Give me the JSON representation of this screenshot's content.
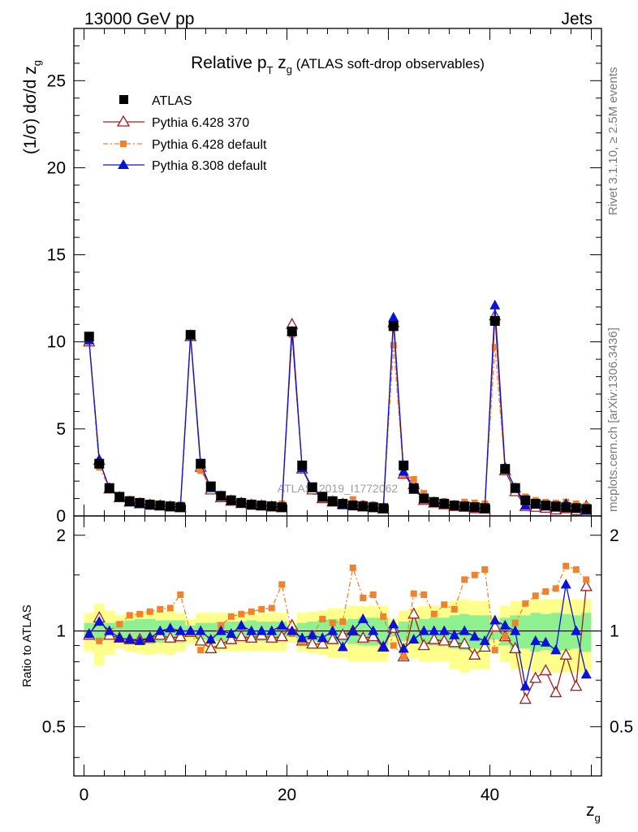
{
  "header": {
    "energy_label": "13000 GeV pp",
    "process_label": "Jets"
  },
  "side_labels": {
    "rivet": "Rivet 3.1.10, ≥ 2.5M events",
    "mcplots": "mcplots.cern.ch [arXiv:1306.3436]"
  },
  "watermark": "ATLAS_2019_I1772062",
  "chart_data": [
    {
      "type": "line",
      "title_main": "Relative p",
      "title_sub": "T",
      "title_var": " z",
      "title_var_sub": "g",
      "title_note": " (ATLAS soft-drop observables)",
      "ylabel": "(1/σ) dσ/d z",
      "ylabel_sub": "g",
      "xlabel": "z",
      "xlabel_sub": "g",
      "xlim": [
        -1,
        51
      ],
      "ylim": [
        0,
        28
      ],
      "yticks": [
        0,
        5,
        10,
        15,
        20,
        25
      ],
      "xticks": [
        0,
        20,
        40
      ],
      "x": [
        0.5,
        1.5,
        2.5,
        3.5,
        4.5,
        5.5,
        6.5,
        7.5,
        8.5,
        9.5,
        10.5,
        11.5,
        12.5,
        13.5,
        14.5,
        15.5,
        16.5,
        17.5,
        18.5,
        19.5,
        20.5,
        21.5,
        22.5,
        23.5,
        24.5,
        25.5,
        26.5,
        27.5,
        28.5,
        29.5,
        30.5,
        31.5,
        32.5,
        33.5,
        34.5,
        35.5,
        36.5,
        37.5,
        38.5,
        39.5,
        40.5,
        41.5,
        42.5,
        43.5,
        44.5,
        45.5,
        46.5,
        47.5,
        48.5,
        49.5
      ],
      "series": [
        {
          "name": "ATLAS",
          "color": "#000000",
          "marker": "square",
          "values": [
            10.3,
            3.0,
            1.6,
            1.1,
            0.85,
            0.75,
            0.65,
            0.6,
            0.55,
            0.5,
            10.4,
            3.0,
            1.7,
            1.15,
            0.9,
            0.75,
            0.65,
            0.6,
            0.55,
            0.5,
            10.6,
            2.9,
            1.65,
            1.1,
            0.85,
            0.7,
            0.6,
            0.55,
            0.5,
            0.45,
            10.9,
            2.9,
            1.6,
            1.0,
            0.8,
            0.7,
            0.6,
            0.55,
            0.5,
            0.45,
            11.2,
            2.7,
            1.6,
            0.9,
            0.7,
            0.6,
            0.55,
            0.5,
            0.45,
            0.4
          ]
        },
        {
          "name": "Pythia 6.428 370",
          "color": "#a01e1e",
          "marker": "triangle-open",
          "values": [
            10.0,
            3.2,
            1.55,
            1.05,
            0.8,
            0.7,
            0.62,
            0.58,
            0.52,
            0.48,
            10.3,
            2.8,
            1.5,
            1.05,
            0.85,
            0.72,
            0.62,
            0.58,
            0.52,
            0.48,
            11.0,
            2.7,
            1.5,
            1.0,
            0.8,
            0.68,
            0.6,
            0.52,
            0.48,
            0.4,
            11.1,
            2.4,
            1.8,
            0.9,
            0.75,
            0.65,
            0.55,
            0.5,
            0.42,
            0.4,
            11.5,
            2.6,
            1.4,
            0.55,
            0.5,
            0.45,
            0.35,
            0.42,
            0.3,
            0.55
          ]
        },
        {
          "name": "Pythia 6.428 default",
          "color": "#f0822d",
          "marker": "square-small",
          "dashed": true,
          "values": [
            10.0,
            2.8,
            1.6,
            1.15,
            0.95,
            0.85,
            0.75,
            0.7,
            0.65,
            0.65,
            10.3,
            2.6,
            1.6,
            1.2,
            1.0,
            0.85,
            0.75,
            0.7,
            0.65,
            0.7,
            10.4,
            2.7,
            1.6,
            1.2,
            0.9,
            0.75,
            0.95,
            0.7,
            0.65,
            0.5,
            9.8,
            2.4,
            2.1,
            1.3,
            0.9,
            0.85,
            0.7,
            0.8,
            0.75,
            0.7,
            9.7,
            2.6,
            1.7,
            1.1,
            0.9,
            0.8,
            0.75,
            0.8,
            0.7,
            0.58
          ]
        },
        {
          "name": "Pythia 8.308 default",
          "color": "#0a12d8",
          "marker": "triangle",
          "values": [
            10.1,
            3.2,
            1.6,
            1.05,
            0.8,
            0.7,
            0.62,
            0.6,
            0.56,
            0.5,
            10.4,
            3.0,
            1.6,
            1.15,
            0.88,
            0.78,
            0.65,
            0.6,
            0.55,
            0.52,
            10.6,
            2.75,
            1.6,
            1.05,
            0.85,
            0.62,
            0.6,
            0.6,
            0.5,
            0.4,
            11.4,
            2.55,
            1.5,
            1.0,
            0.8,
            0.7,
            0.58,
            0.55,
            0.48,
            0.42,
            12.1,
            2.8,
            1.6,
            0.6,
            0.65,
            0.55,
            0.48,
            0.7,
            0.45,
            0.3
          ]
        }
      ],
      "legend": [
        "ATLAS",
        "Pythia 6.428 370",
        "Pythia 6.428 default",
        "Pythia 8.308 default"
      ]
    },
    {
      "type": "line",
      "ylabel": "Ratio to ATLAS",
      "ylim": [
        0.35,
        2.3
      ],
      "yticks": [
        0.5,
        1,
        2
      ],
      "ytick_labels": [
        "0.5",
        "1",
        "2"
      ],
      "band_inner": [
        0.06,
        0.07,
        0.06,
        0.07,
        0.08,
        0.09,
        0.09,
        0.08,
        0.08,
        0.08,
        0.04,
        0.06,
        0.06,
        0.07,
        0.07,
        0.07,
        0.08,
        0.07,
        0.07,
        0.07,
        0.04,
        0.06,
        0.07,
        0.08,
        0.09,
        0.08,
        0.09,
        0.1,
        0.1,
        0.1,
        0.04,
        0.07,
        0.08,
        0.09,
        0.1,
        0.1,
        0.12,
        0.13,
        0.12,
        0.12,
        0.06,
        0.1,
        0.12,
        0.12,
        0.14,
        0.13,
        0.14,
        0.13,
        0.12,
        0.14
      ],
      "band_outer": [
        0.14,
        0.22,
        0.16,
        0.12,
        0.14,
        0.15,
        0.16,
        0.15,
        0.16,
        0.14,
        0.09,
        0.14,
        0.14,
        0.14,
        0.14,
        0.14,
        0.14,
        0.14,
        0.14,
        0.14,
        0.08,
        0.14,
        0.15,
        0.16,
        0.18,
        0.18,
        0.2,
        0.2,
        0.2,
        0.2,
        0.1,
        0.16,
        0.18,
        0.2,
        0.2,
        0.2,
        0.24,
        0.26,
        0.24,
        0.24,
        0.12,
        0.2,
        0.24,
        0.24,
        0.26,
        0.26,
        0.26,
        0.26,
        0.26,
        0.26
      ],
      "series": [
        {
          "name": "Pythia 6.428 370",
          "values": [
            0.97,
            1.1,
            0.97,
            0.95,
            0.94,
            0.94,
            0.95,
            0.97,
            0.95,
            0.96,
            0.99,
            0.93,
            0.88,
            0.91,
            0.94,
            0.96,
            0.95,
            0.97,
            0.95,
            0.96,
            1.04,
            0.93,
            0.91,
            0.91,
            0.94,
            0.97,
            1.0,
            0.95,
            0.96,
            0.89,
            1.02,
            0.83,
            1.13,
            0.9,
            0.94,
            0.93,
            0.92,
            0.91,
            0.84,
            0.89,
            1.03,
            0.96,
            0.88,
            0.61,
            0.71,
            0.75,
            0.64,
            0.84,
            0.67,
            1.38
          ]
        },
        {
          "name": "Pythia 6.428 default",
          "values": [
            0.97,
            0.93,
            1.0,
            1.05,
            1.12,
            1.13,
            1.15,
            1.17,
            1.18,
            1.3,
            0.99,
            0.87,
            0.94,
            1.04,
            1.11,
            1.13,
            1.15,
            1.17,
            1.18,
            1.4,
            0.98,
            0.93,
            0.97,
            1.09,
            1.06,
            1.07,
            1.58,
            1.27,
            1.3,
            1.11,
            0.9,
            0.83,
            1.31,
            1.3,
            1.13,
            1.21,
            1.17,
            1.45,
            1.5,
            1.56,
            0.87,
            0.96,
            1.06,
            1.22,
            1.29,
            1.33,
            1.36,
            1.6,
            1.56,
            1.45
          ]
        },
        {
          "name": "Pythia 8.308 default",
          "values": [
            0.98,
            1.07,
            1.0,
            0.95,
            0.94,
            0.93,
            0.95,
            1.0,
            1.02,
            1.0,
            1.0,
            1.0,
            0.94,
            1.0,
            0.98,
            1.04,
            1.0,
            1.0,
            1.0,
            1.04,
            1.0,
            0.95,
            0.97,
            0.95,
            1.0,
            0.89,
            1.0,
            1.09,
            1.0,
            0.89,
            1.05,
            0.88,
            0.94,
            1.0,
            1.0,
            1.0,
            0.97,
            1.0,
            0.96,
            0.93,
            1.08,
            1.04,
            1.0,
            0.67,
            0.93,
            0.92,
            0.87,
            1.4,
            1.0,
            0.73
          ]
        }
      ]
    }
  ]
}
